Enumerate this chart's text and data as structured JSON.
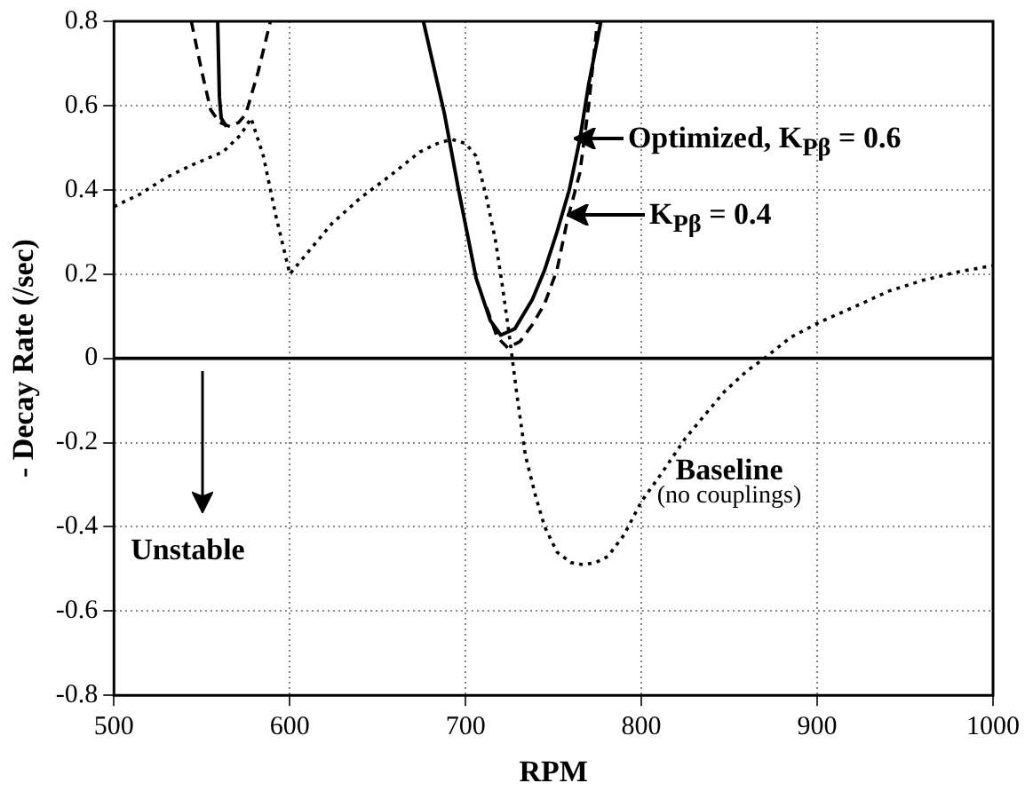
{
  "chart_data": {
    "type": "line",
    "xlabel": "RPM",
    "ylabel": "- Decay Rate (/sec)",
    "xlim": [
      500,
      1000
    ],
    "xticks": [
      500,
      600,
      700,
      800,
      900,
      1000
    ],
    "ylim": [
      -0.8,
      0.8
    ],
    "yticks": [
      -0.8,
      -0.6,
      -0.4,
      -0.2,
      0,
      0.2,
      0.4,
      0.6,
      0.8
    ],
    "grid": true,
    "legend": false,
    "marker": "none",
    "series": [
      {
        "color": "#000000",
        "line_style": "solid",
        "x": [
          559,
          560,
          561,
          564
        ],
        "values": [
          0.8,
          0.62,
          0.57,
          0.55
        ]
      },
      {
        "color": "#000000",
        "line_style": "solid",
        "x": [
          676,
          688,
          696,
          706,
          714,
          720,
          728,
          738,
          745,
          752,
          759,
          765,
          770,
          777
        ],
        "values": [
          0.8,
          0.58,
          0.4,
          0.19,
          0.09,
          0.055,
          0.07,
          0.14,
          0.21,
          0.3,
          0.4,
          0.52,
          0.65,
          0.8
        ]
      },
      {
        "color": "#000000",
        "line_style": "dashed",
        "x": [
          544,
          550,
          555,
          560,
          566,
          571,
          575,
          582,
          589
        ],
        "values": [
          0.8,
          0.68,
          0.59,
          0.56,
          0.55,
          0.56,
          0.58,
          0.68,
          0.8
        ]
      },
      {
        "color": "#000000",
        "line_style": "dashed",
        "x": [
          712,
          718,
          724,
          731,
          738,
          745,
          752,
          758,
          765,
          770,
          775
        ],
        "values": [
          0.12,
          0.05,
          0.025,
          0.04,
          0.08,
          0.13,
          0.21,
          0.33,
          0.44,
          0.6,
          0.8
        ]
      },
      {
        "color": "#000000",
        "line_style": "dotted",
        "x": [
          500,
          515,
          530,
          545,
          562,
          572,
          578,
          585,
          592,
          600,
          612,
          624,
          640,
          656,
          674,
          684,
          692,
          700,
          706,
          712,
          717,
          721,
          725,
          729,
          734,
          740,
          745,
          752,
          760,
          767,
          774,
          781,
          790,
          800,
          812,
          825,
          837,
          847,
          860,
          870,
          885,
          901,
          920,
          941,
          960,
          980,
          1000
        ],
        "values": [
          0.36,
          0.39,
          0.43,
          0.46,
          0.49,
          0.53,
          0.57,
          0.48,
          0.34,
          0.2,
          0.26,
          0.32,
          0.38,
          0.43,
          0.49,
          0.51,
          0.52,
          0.51,
          0.48,
          0.38,
          0.28,
          0.17,
          0.05,
          -0.08,
          -0.23,
          -0.33,
          -0.4,
          -0.46,
          -0.485,
          -0.49,
          -0.485,
          -0.47,
          -0.42,
          -0.34,
          -0.27,
          -0.19,
          -0.13,
          -0.08,
          -0.03,
          0.0,
          0.05,
          0.085,
          0.12,
          0.16,
          0.185,
          0.205,
          0.22
        ]
      }
    ],
    "ref_lines": [
      {
        "axis": "y",
        "value": 0,
        "color": "#000000",
        "line_style": "solid"
      }
    ],
    "annotations": [
      {
        "text": "Optimized, K$_{Pβ}$ = 0.6",
        "x": 762,
        "y": 0.52
      },
      {
        "text": "K$_{Pβ}$ = 0.4",
        "x": 758,
        "y": 0.34
      },
      "Unstable",
      "Baseline",
      "(no couplings)"
    ]
  }
}
